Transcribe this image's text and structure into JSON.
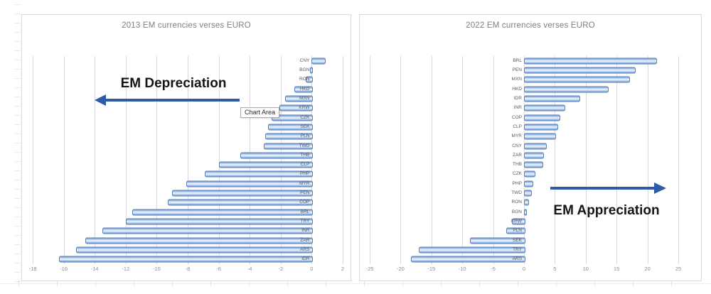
{
  "colors": {
    "bar_fill_light": "#c3d9f1",
    "bar_border": "#547ab5",
    "arrow_blue": "#2d5aa9",
    "gridline": "#d9d9d9",
    "title_gray": "#7f7f7f"
  },
  "chart_data": [
    {
      "type": "bar",
      "orientation": "horizontal",
      "title": "2013 EM currencies verses EURO",
      "annotation": {
        "text": "EM Depreciation",
        "direction": "left"
      },
      "tooltip": "Chart Area",
      "xlim": [
        -18,
        2
      ],
      "xticks": [
        -18,
        -16,
        -14,
        -12,
        -10,
        -8,
        -6,
        -4,
        -2,
        0,
        2
      ],
      "grid": true,
      "legend": "none",
      "categories": [
        "CNY",
        "BGN",
        "RON",
        "HKD",
        "MXN",
        "KRW",
        "CZK",
        "SEK",
        "PLN",
        "TWD",
        "THB",
        "CLP",
        "PHP",
        "MYR",
        "PEN",
        "COP",
        "BRL",
        "TRY",
        "INR",
        "ZAR",
        "ARS",
        "IDR"
      ],
      "values": [
        0.8,
        -0.1,
        -0.4,
        -1.1,
        -1.7,
        -2.1,
        -2.6,
        -2.8,
        -3.0,
        -3.1,
        -4.6,
        -6.0,
        -6.9,
        -8.1,
        -9.0,
        -9.3,
        -11.6,
        -12.0,
        -13.5,
        -14.6,
        -15.2,
        -16.3
      ]
    },
    {
      "type": "bar",
      "orientation": "horizontal",
      "title": "2022 EM currencies verses EURO",
      "annotation": {
        "text": "EM Appreciation",
        "direction": "right"
      },
      "xlim": [
        -25,
        25
      ],
      "xticks": [
        -25,
        -20,
        -15,
        -10,
        -5,
        0,
        5,
        10,
        15,
        20,
        25
      ],
      "grid": true,
      "legend": "none",
      "categories": [
        "BRL",
        "PEN",
        "MXN",
        "HKD",
        "IDR",
        "INR",
        "COP",
        "CLP",
        "MYR",
        "CNY",
        "ZAR",
        "THB",
        "CZK",
        "PHP",
        "TWD",
        "RON",
        "BGN",
        "KRW",
        "PLN",
        "SEK",
        "TRY",
        "ARS"
      ],
      "values": [
        21.3,
        17.8,
        16.9,
        13.5,
        8.9,
        6.5,
        5.6,
        5.3,
        5.0,
        3.5,
        3.0,
        2.9,
        1.6,
        1.3,
        1.0,
        0.6,
        0.15,
        -2.0,
        -2.9,
        -8.8,
        -17.1,
        -18.3
      ]
    }
  ]
}
